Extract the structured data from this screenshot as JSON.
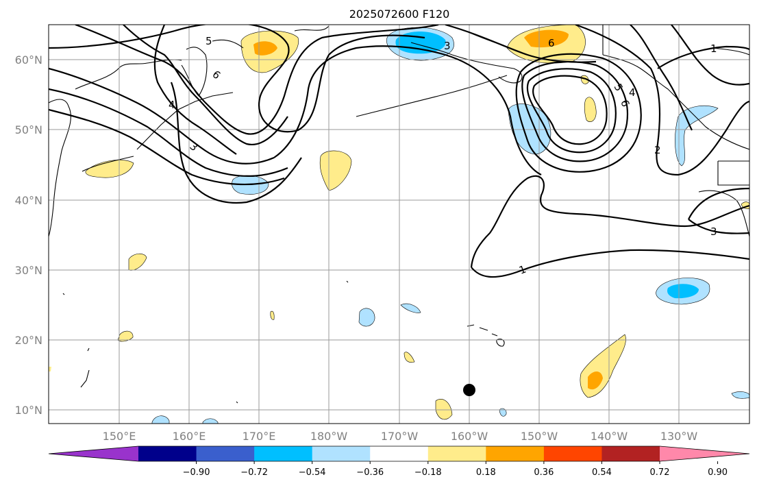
{
  "title": "2025072600 F120",
  "lon_ticks": [
    "150°E",
    "160°E",
    "170°E",
    "180°W",
    "170°W",
    "160°W",
    "150°W",
    "140°W",
    "130°W"
  ],
  "lat_ticks": [
    "60°N",
    "50°N",
    "40°N",
    "30°N",
    "20°N",
    "10°N"
  ],
  "colorbar": {
    "labels": [
      "−0.90",
      "−0.72",
      "−0.54",
      "−0.36",
      "−0.18",
      "0.18",
      "0.36",
      "0.54",
      "0.72",
      "0.90"
    ],
    "colors": [
      "#9933cc",
      "#00008b",
      "#3a5fcd",
      "#00bfff",
      "#b0e2ff",
      "#ffffff",
      "#ffec8b",
      "#ffa500",
      "#ff4500",
      "#b22222",
      "#ff88aa"
    ]
  },
  "contour_labels": [
    "5",
    "6",
    "4",
    "3",
    "3",
    "6",
    "5",
    "6",
    "4",
    "2",
    "1",
    "3",
    "1"
  ],
  "marker": "storm-center-dot"
}
